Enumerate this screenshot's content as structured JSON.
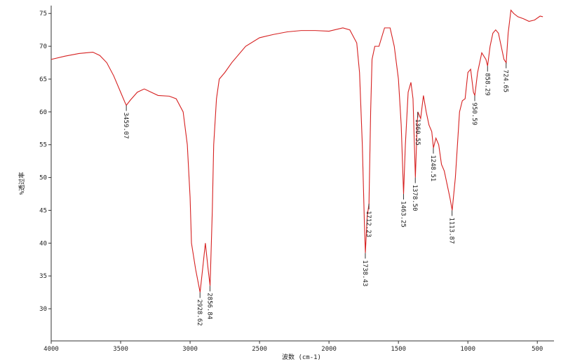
{
  "chart_data": {
    "type": "line",
    "xlabel": "波数 (cm-1)",
    "ylabel": "%透过率",
    "color": "#d62020",
    "x": [
      4000,
      3900,
      3800,
      3700,
      3650,
      3600,
      3550,
      3500,
      3470,
      3459,
      3430,
      3380,
      3330,
      3280,
      3230,
      3150,
      3100,
      3050,
      3020,
      3000,
      2990,
      2960,
      2928,
      2910,
      2890,
      2870,
      2856,
      2840,
      2830,
      2810,
      2790,
      2750,
      2700,
      2600,
      2500,
      2400,
      2300,
      2200,
      2100,
      2000,
      1900,
      1850,
      1800,
      1780,
      1760,
      1745,
      1738,
      1725,
      1712,
      1700,
      1690,
      1670,
      1640,
      1600,
      1560,
      1530,
      1500,
      1480,
      1463,
      1450,
      1430,
      1410,
      1395,
      1378,
      1365,
      1360,
      1340,
      1320,
      1300,
      1280,
      1260,
      1248,
      1230,
      1210,
      1190,
      1170,
      1150,
      1130,
      1113,
      1090,
      1060,
      1040,
      1020,
      1000,
      980,
      960,
      950,
      930,
      900,
      870,
      858,
      840,
      820,
      800,
      780,
      760,
      740,
      724,
      710,
      690,
      670,
      640,
      600,
      560,
      520,
      480,
      460
    ],
    "values": [
      68.0,
      68.5,
      68.9,
      69.1,
      68.6,
      67.5,
      65.5,
      63.0,
      61.5,
      61.0,
      61.8,
      63.0,
      63.5,
      63.0,
      62.5,
      62.4,
      62.0,
      60,
      55,
      47,
      40,
      36,
      32.5,
      36,
      40,
      36,
      33.5,
      45,
      55,
      62,
      65,
      66,
      67.5,
      70,
      71.3,
      71.8,
      72.2,
      72.4,
      72.4,
      72.3,
      72.8,
      72.5,
      70.5,
      66,
      55,
      43,
      38.5,
      44,
      46,
      60,
      68,
      70,
      70,
      72.8,
      72.8,
      70,
      65,
      58,
      47.5,
      55,
      63,
      64.5,
      62,
      50,
      58,
      60,
      59,
      62.5,
      60,
      58,
      57,
      54.5,
      56,
      55,
      52,
      51,
      49,
      47,
      45,
      50,
      60,
      61.7,
      62,
      66,
      66.5,
      63,
      62.5,
      66,
      69,
      68,
      67,
      70,
      72,
      72.5,
      72,
      70,
      68,
      67.5,
      72,
      75.5,
      75,
      74.5,
      74.2,
      73.8,
      74,
      74.6,
      74.5
    ],
    "annotations": {
      "x": [
        3459.07,
        2928.62,
        2856.84,
        1738.43,
        1712.23,
        1463.25,
        1378.5,
        1360.55,
        1248.51,
        1113.87,
        950.59,
        858.29,
        724.65
      ],
      "y": [
        61.0,
        32.5,
        33.5,
        38.5,
        46,
        47.5,
        50,
        60,
        54.5,
        45,
        62.5,
        67,
        67.5
      ],
      "value_labels": [
        "3459.07",
        "2928.62",
        "2856.84",
        "1738.43",
        "1712.23",
        "1463.25",
        "1378.50",
        "1360.55",
        "1248.51",
        "1113.87",
        "950.59",
        "858.29",
        "724.65"
      ]
    },
    "xlim": [
      4000,
      380
    ],
    "ylim": [
      25.1,
      76.2
    ],
    "xticks": [
      4000,
      3500,
      3000,
      2500,
      2000,
      1500,
      1000,
      500
    ],
    "yticks": [
      30,
      35,
      40,
      45,
      50,
      55,
      60,
      65,
      70,
      75
    ]
  }
}
